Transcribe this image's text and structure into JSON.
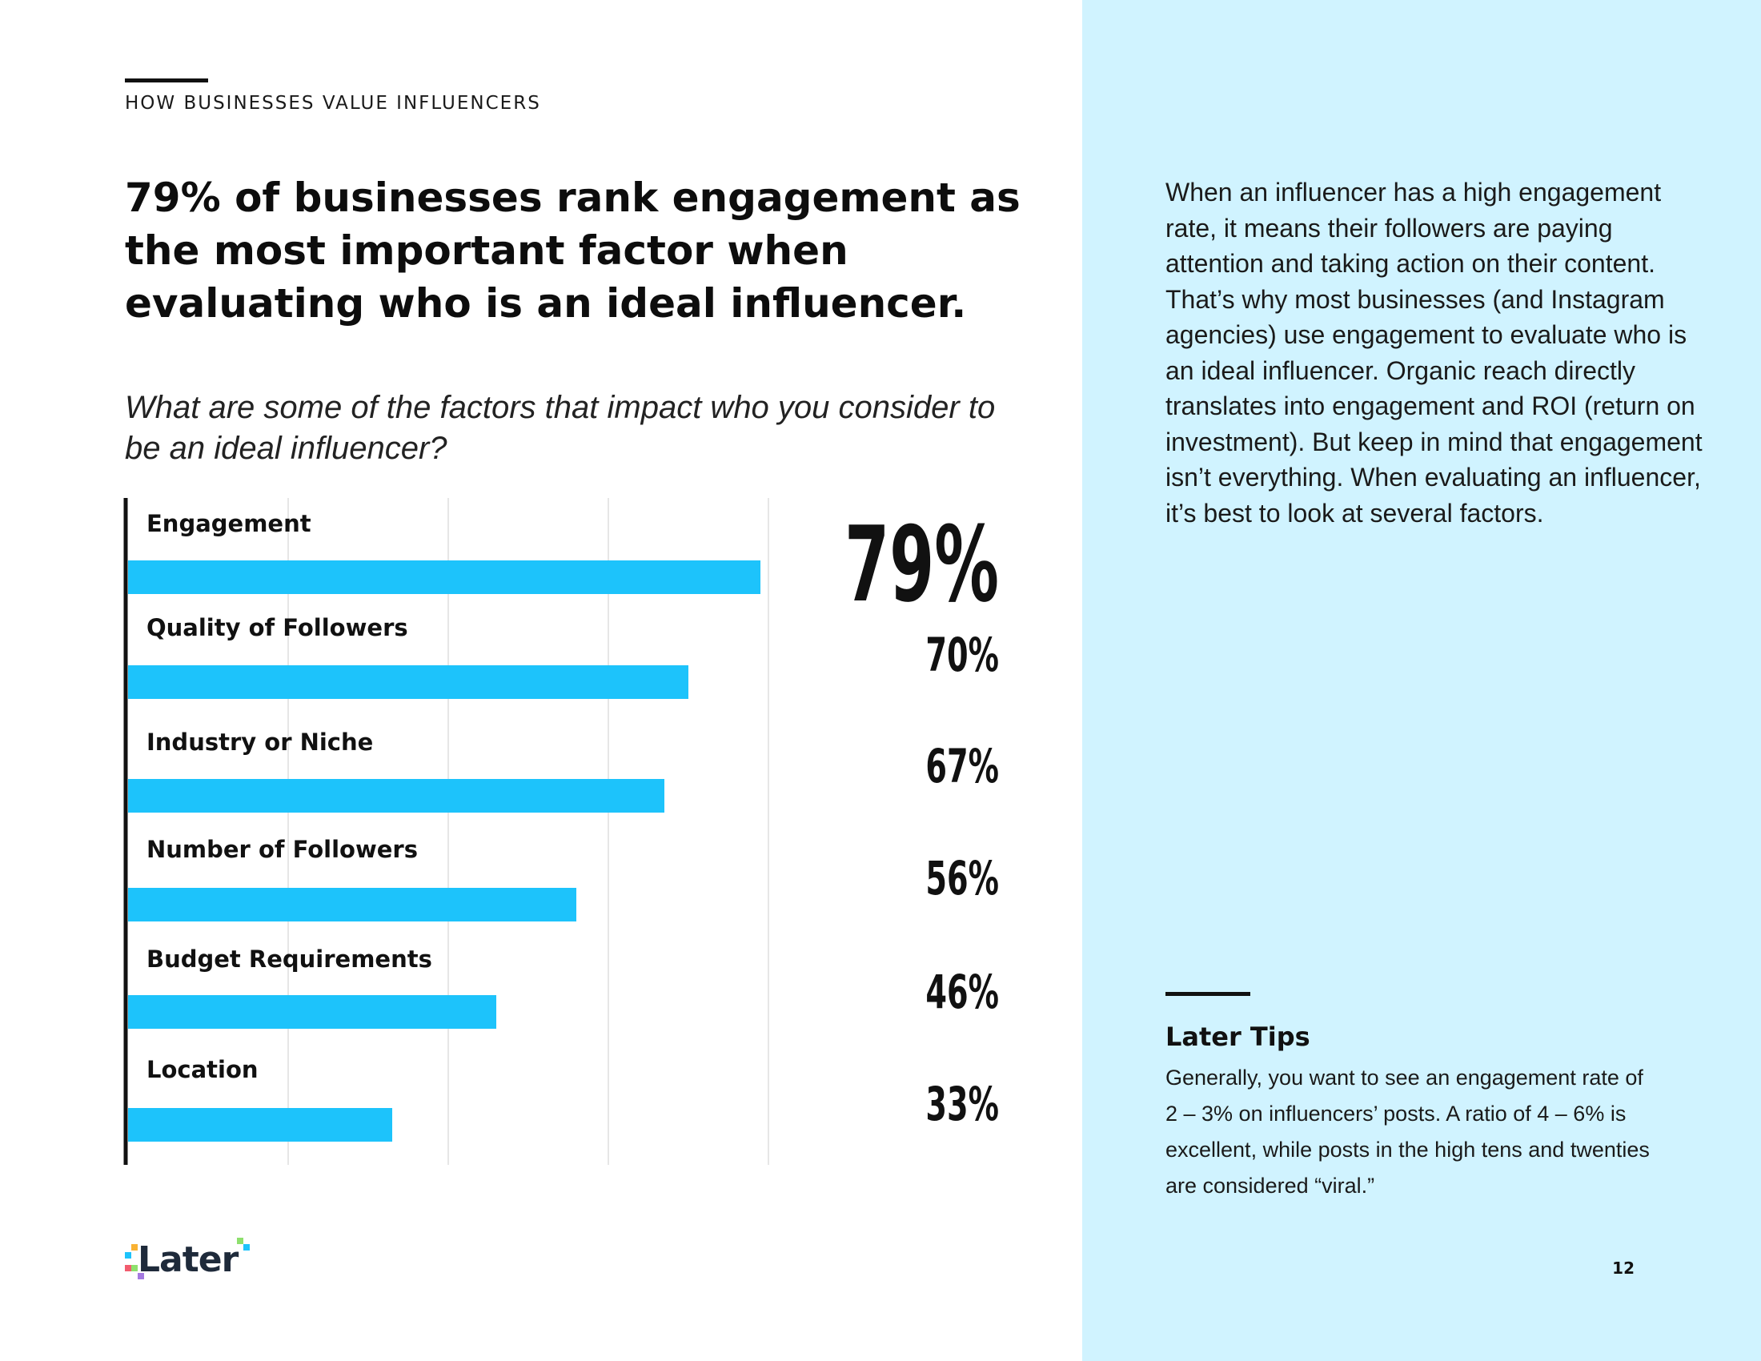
{
  "header": {
    "eyebrow": "HOW BUSINESSES VALUE INFLUENCERS",
    "headline": "79% of businesses rank engagement as the most important factor when evaluating who is an ideal influencer.",
    "question": "What are some of the factors that impact who you consider to be an ideal influencer?"
  },
  "sidebar": {
    "body": "When an influencer has a high engagement rate, it means their followers are paying attention and taking action on their content. That’s why most businesses (and Instagram agencies) use engagement to evaluate who is an ideal influencer. Organic reach directly translates into engagement and ROI (return on investment). But keep in mind that engagement isn’t everything. When evaluating an influencer, it’s best to look at several factors.",
    "tips_title": "Later Tips",
    "tips_body": "Generally, you want to see an engagement rate of 2 – 3% on influencers’ posts. A ratio of 4 – 6% is excellent, while posts in the high tens and twenties are considered “viral.”"
  },
  "footer": {
    "logo_text": "Later",
    "page_number": "12"
  },
  "colors": {
    "bar": "#1dc3fb",
    "sidebar_bg": "#d0f3ff",
    "gridline": "#e6e6e6",
    "axis": "#111111"
  },
  "chart_data": {
    "type": "bar",
    "orientation": "horizontal",
    "categories": [
      "Engagement",
      "Quality of Followers",
      "Industry or Niche",
      "Number of Followers",
      "Budget Requirements",
      "Location"
    ],
    "values": [
      79,
      70,
      67,
      56,
      46,
      33
    ],
    "value_labels": [
      "79%",
      "70%",
      "67%",
      "56%",
      "46%",
      "33%"
    ],
    "xlim": [
      0,
      100
    ],
    "grid": true,
    "legend": "none"
  }
}
